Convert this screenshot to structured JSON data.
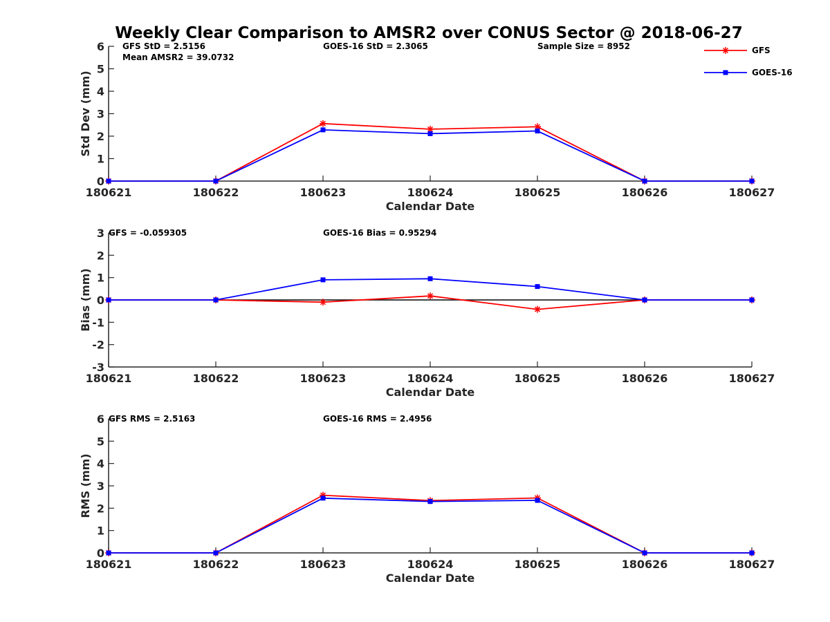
{
  "title": "Weekly Clear Comparison to AMSR2 over CONUS Sector @ 2018-06-27",
  "colors": {
    "gfs": "#ff0000",
    "goes": "#0000ff",
    "axis": "#262626"
  },
  "legend": {
    "placement": "top-right",
    "items": [
      {
        "label": "GFS",
        "color": "#ff0000",
        "marker": "asterisk"
      },
      {
        "label": "GOES-16",
        "color": "#0000ff",
        "marker": "square"
      }
    ]
  },
  "chart_data": [
    {
      "type": "line",
      "title": "",
      "xlabel": "Calendar Date",
      "ylabel": "Std Dev (mm)",
      "categories": [
        "180621",
        "180622",
        "180623",
        "180624",
        "180625",
        "180626",
        "180627"
      ],
      "ylim": [
        0,
        6
      ],
      "yticks": [
        "0",
        "1",
        "2",
        "3",
        "4",
        "5",
        "6"
      ],
      "zero_line": false,
      "grid": false,
      "series": [
        {
          "name": "GFS",
          "values": [
            0,
            0,
            2.56,
            2.31,
            2.42,
            0,
            0
          ]
        },
        {
          "name": "GOES-16",
          "values": [
            0,
            0,
            2.28,
            2.11,
            2.23,
            0,
            0
          ]
        }
      ],
      "annotations": [
        "GFS StD = 2.5156",
        "Mean AMSR2 = 39.0732",
        "GOES-16 StD = 2.3065",
        "Sample Size = 8952"
      ]
    },
    {
      "type": "line",
      "title": "",
      "xlabel": "Calendar Date",
      "ylabel": "Bias (mm)",
      "categories": [
        "180621",
        "180622",
        "180623",
        "180624",
        "180625",
        "180626",
        "180627"
      ],
      "ylim": [
        -3,
        3
      ],
      "yticks": [
        "-3",
        "-2",
        "-1",
        "0",
        "1",
        "2",
        "3"
      ],
      "zero_line": true,
      "grid": false,
      "series": [
        {
          "name": "GFS",
          "values": [
            0,
            0,
            -0.1,
            0.18,
            -0.42,
            0,
            0
          ]
        },
        {
          "name": "GOES-16",
          "values": [
            0,
            0,
            0.9,
            0.95,
            0.6,
            0,
            0
          ]
        }
      ],
      "annotations": [
        "GFS = -0.059305",
        "GOES-16 Bias  = 0.95294"
      ]
    },
    {
      "type": "line",
      "title": "",
      "xlabel": "Calendar Date",
      "ylabel": "RMS (mm)",
      "categories": [
        "180621",
        "180622",
        "180623",
        "180624",
        "180625",
        "180626",
        "180627"
      ],
      "ylim": [
        0,
        6
      ],
      "yticks": [
        "0",
        "1",
        "2",
        "3",
        "4",
        "5",
        "6"
      ],
      "zero_line": false,
      "grid": false,
      "series": [
        {
          "name": "GFS",
          "values": [
            0,
            0,
            2.58,
            2.34,
            2.46,
            0,
            0
          ]
        },
        {
          "name": "GOES-16",
          "values": [
            0,
            0,
            2.45,
            2.3,
            2.35,
            0,
            0
          ]
        }
      ],
      "annotations": [
        "GFS RMS = 2.5163",
        "GOES-16 RMS = 2.4956"
      ]
    }
  ]
}
